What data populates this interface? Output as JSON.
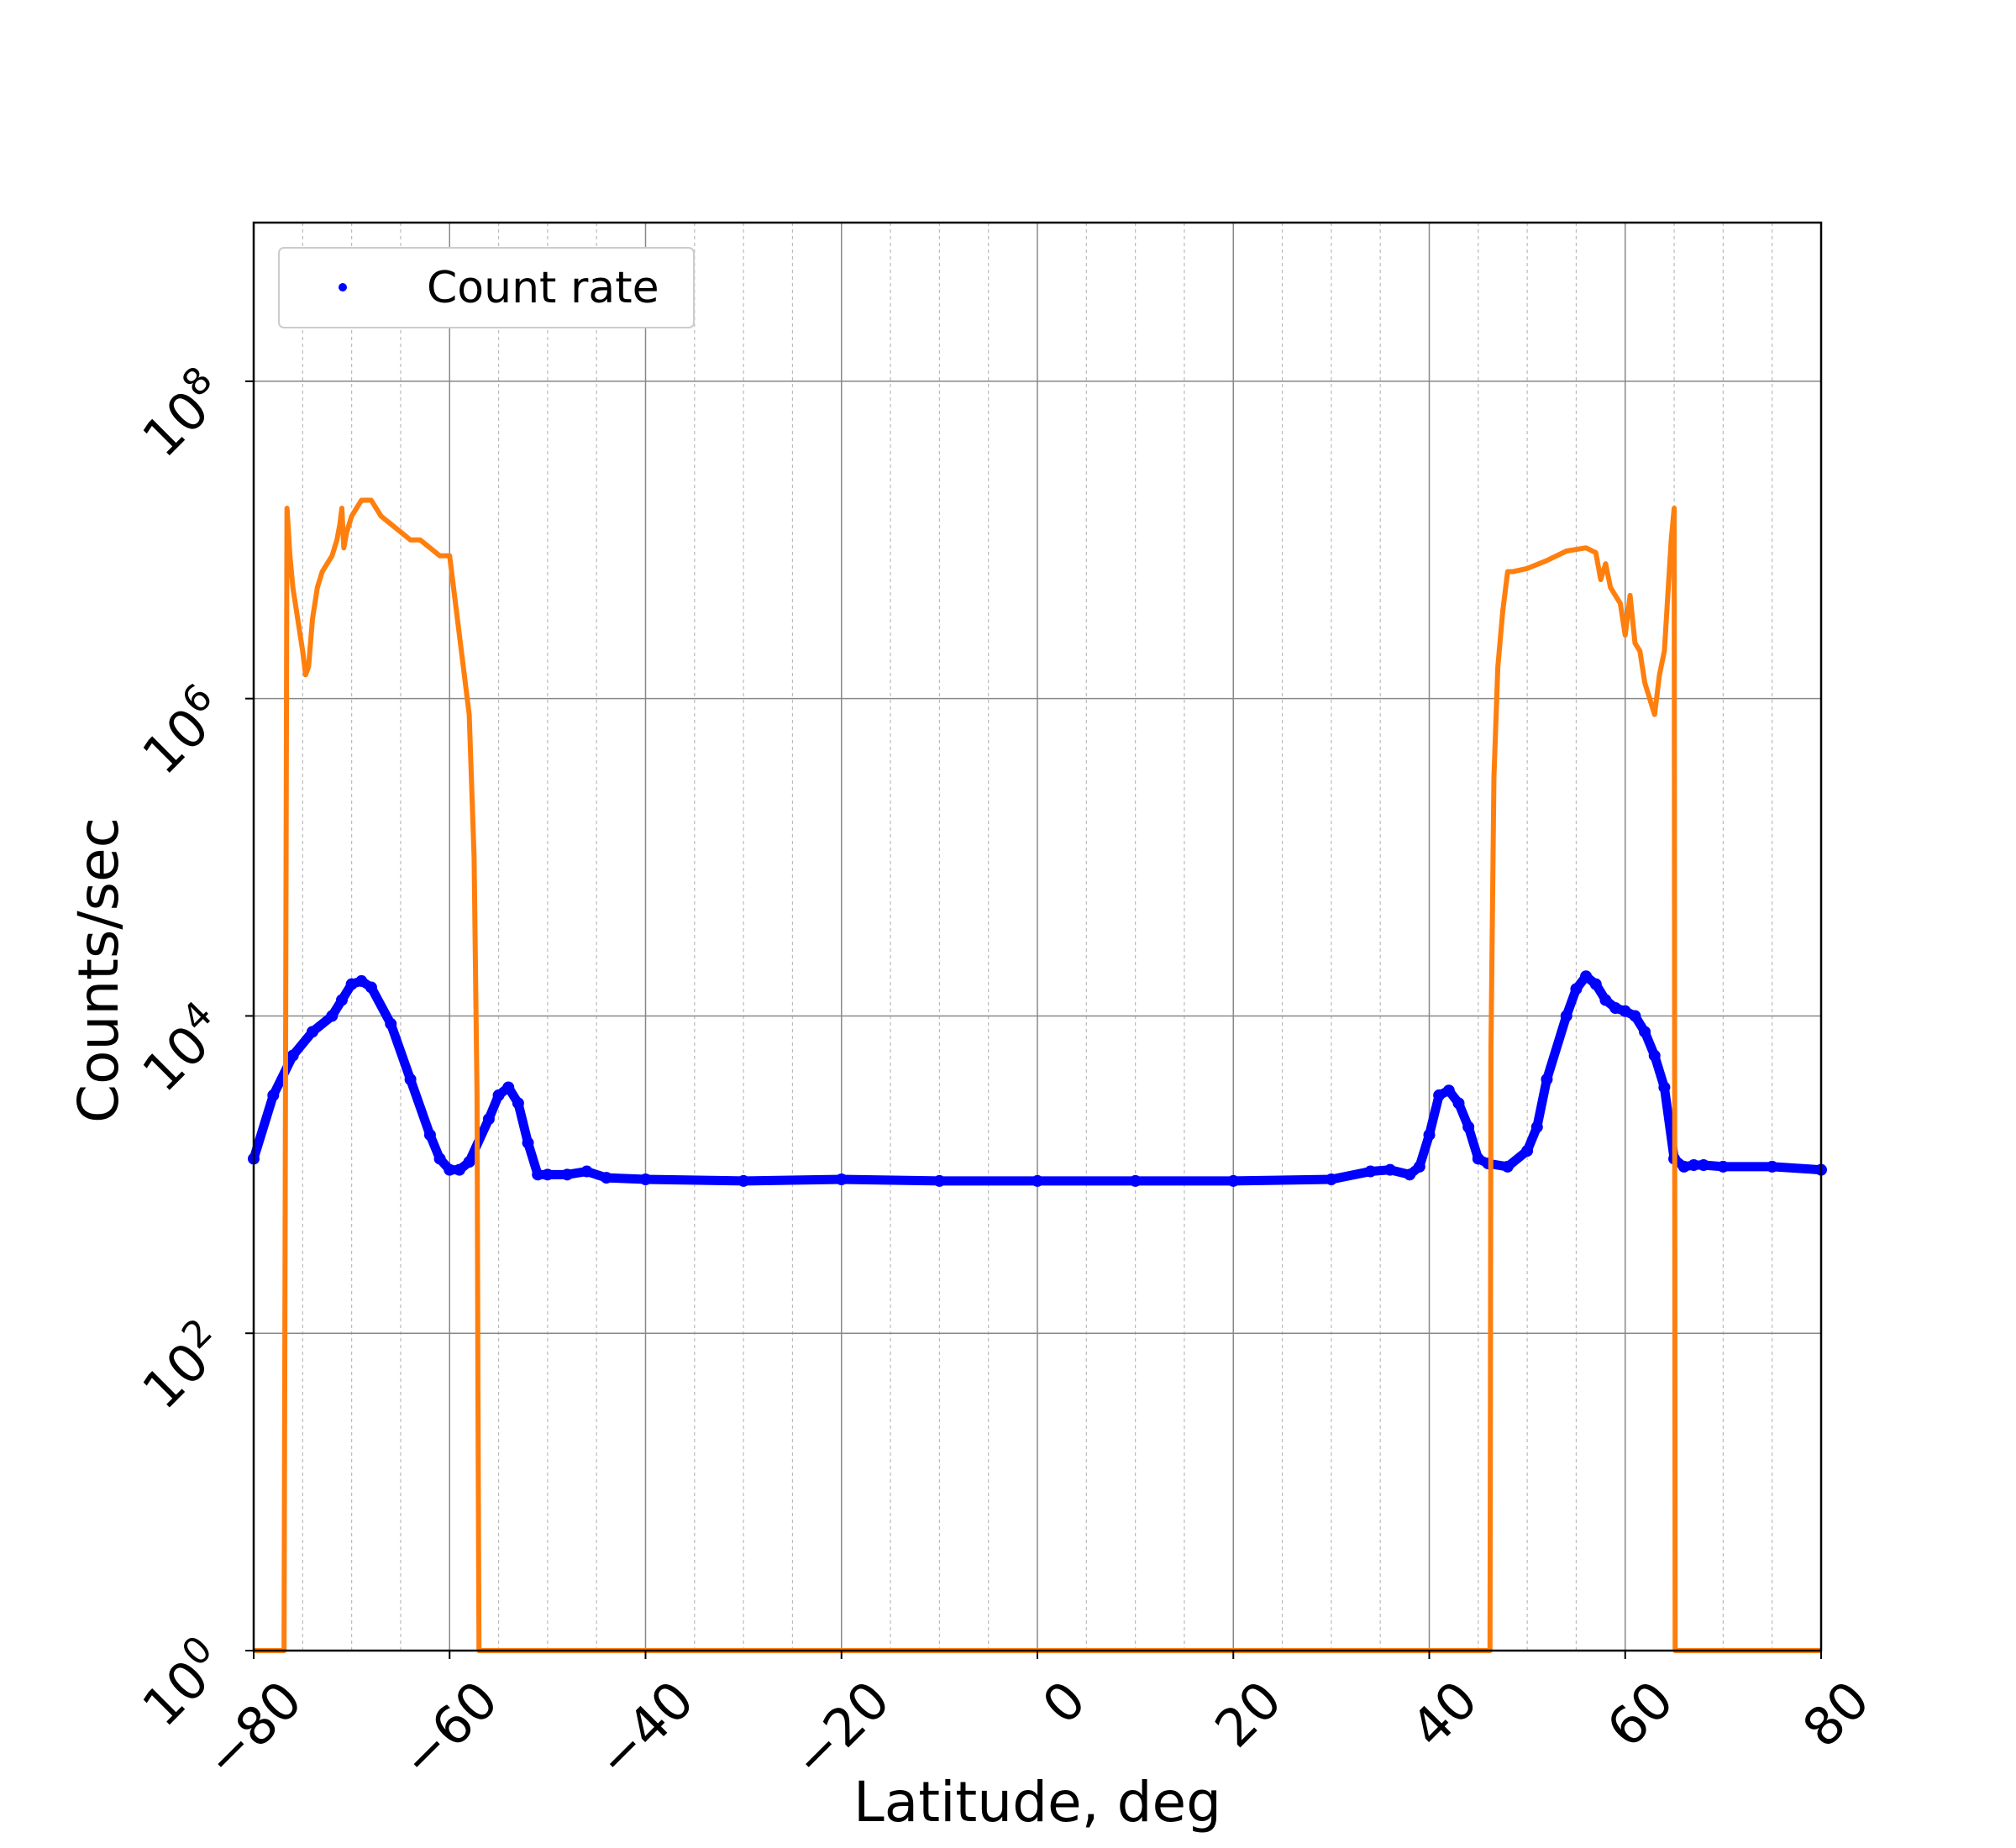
{
  "chart_data": {
    "type": "line",
    "title": "",
    "xlabel": "Latitude, deg",
    "ylabel": "Counts/sec",
    "xlim": [
      -80,
      80
    ],
    "ylim_log10": [
      0,
      9
    ],
    "yscale": "log",
    "grid": true,
    "x_ticks": [
      -80,
      -60,
      -40,
      -20,
      0,
      20,
      40,
      60,
      80
    ],
    "x_tick_labels": [
      "−80",
      "−60",
      "−40",
      "−20",
      "0",
      "20",
      "40",
      "60",
      "80"
    ],
    "y_ticks_log10": [
      0,
      2,
      4,
      6,
      8
    ],
    "y_tick_base": "10",
    "y_tick_exponents": [
      "0",
      "2",
      "4",
      "6",
      "8"
    ],
    "legend": {
      "position": "top-left",
      "entries": [
        "Count rate"
      ]
    },
    "series": [
      {
        "name": "Count rate",
        "style": "scatter",
        "color": "#0000ff",
        "x": [
          -80,
          -78,
          -76,
          -74,
          -72,
          -71,
          -70,
          -69,
          -68,
          -66,
          -64,
          -62,
          -61,
          -60,
          -59,
          -58,
          -56,
          -55,
          -54,
          -53,
          -52,
          -51,
          -50,
          -48,
          -46,
          -44,
          -40,
          -30,
          -20,
          -10,
          0,
          10,
          20,
          30,
          34,
          36,
          38,
          39,
          40,
          41,
          42,
          43,
          44,
          45,
          46,
          48,
          50,
          51,
          52,
          54,
          55,
          56,
          57,
          58,
          59,
          60,
          61,
          62,
          63,
          64,
          65,
          66,
          67,
          68,
          70,
          75,
          80
        ],
        "y_log10": [
          3.1,
          3.5,
          3.75,
          3.9,
          4.0,
          4.1,
          4.2,
          4.22,
          4.18,
          3.95,
          3.6,
          3.25,
          3.1,
          3.03,
          3.03,
          3.08,
          3.35,
          3.5,
          3.55,
          3.45,
          3.2,
          3.0,
          3.0,
          3.0,
          3.02,
          2.98,
          2.97,
          2.96,
          2.97,
          2.96,
          2.96,
          2.96,
          2.96,
          2.97,
          3.02,
          3.03,
          3.0,
          3.05,
          3.25,
          3.5,
          3.53,
          3.45,
          3.3,
          3.1,
          3.07,
          3.05,
          3.15,
          3.3,
          3.6,
          4.0,
          4.17,
          4.25,
          4.2,
          4.1,
          4.05,
          4.03,
          4.0,
          3.9,
          3.75,
          3.55,
          3.1,
          3.05,
          3.06,
          3.06,
          3.05,
          3.05,
          3.03
        ]
      },
      {
        "name": "",
        "style": "line",
        "color": "#ff7f0e",
        "x": [
          -80,
          -76.9,
          -76.6,
          -76.3,
          -76,
          -75.5,
          -75,
          -74.7,
          -74.4,
          -74,
          -73.5,
          -73,
          -72.5,
          -72,
          -71.5,
          -71.2,
          -71,
          -70.8,
          -70.5,
          -70,
          -69.5,
          -69,
          -68,
          -67,
          -66,
          -65,
          -64,
          -63,
          -62,
          -61,
          -60,
          -59,
          -58,
          -57.5,
          -57.2,
          -57.1,
          -57,
          -30,
          0,
          30,
          46.2,
          46.3,
          46.6,
          47,
          47.5,
          48,
          48.5,
          50,
          52,
          54,
          56,
          57,
          57.5,
          58,
          58.5,
          59,
          59.5,
          60,
          60.5,
          61,
          61.5,
          62,
          62.5,
          63,
          63.5,
          64,
          64.4,
          64.7,
          65,
          65.1,
          65.3,
          70,
          80
        ],
        "y_log10": [
          0,
          0,
          7.2,
          6.9,
          6.7,
          6.5,
          6.3,
          6.15,
          6.2,
          6.5,
          6.7,
          6.8,
          6.85,
          6.9,
          7.0,
          7.1,
          7.2,
          6.95,
          7.05,
          7.15,
          7.2,
          7.25,
          7.25,
          7.15,
          7.1,
          7.05,
          7.0,
          7.0,
          6.95,
          6.9,
          6.9,
          6.4,
          5.9,
          5.0,
          3.5,
          1.5,
          0,
          0,
          0,
          0,
          0,
          3.8,
          5.5,
          6.2,
          6.55,
          6.8,
          6.8,
          6.82,
          6.87,
          6.93,
          6.95,
          6.92,
          6.75,
          6.85,
          6.7,
          6.65,
          6.6,
          6.4,
          6.65,
          6.35,
          6.3,
          6.1,
          6.0,
          5.9,
          6.15,
          6.3,
          6.7,
          7.0,
          7.2,
          0,
          0,
          0,
          0
        ]
      }
    ]
  }
}
